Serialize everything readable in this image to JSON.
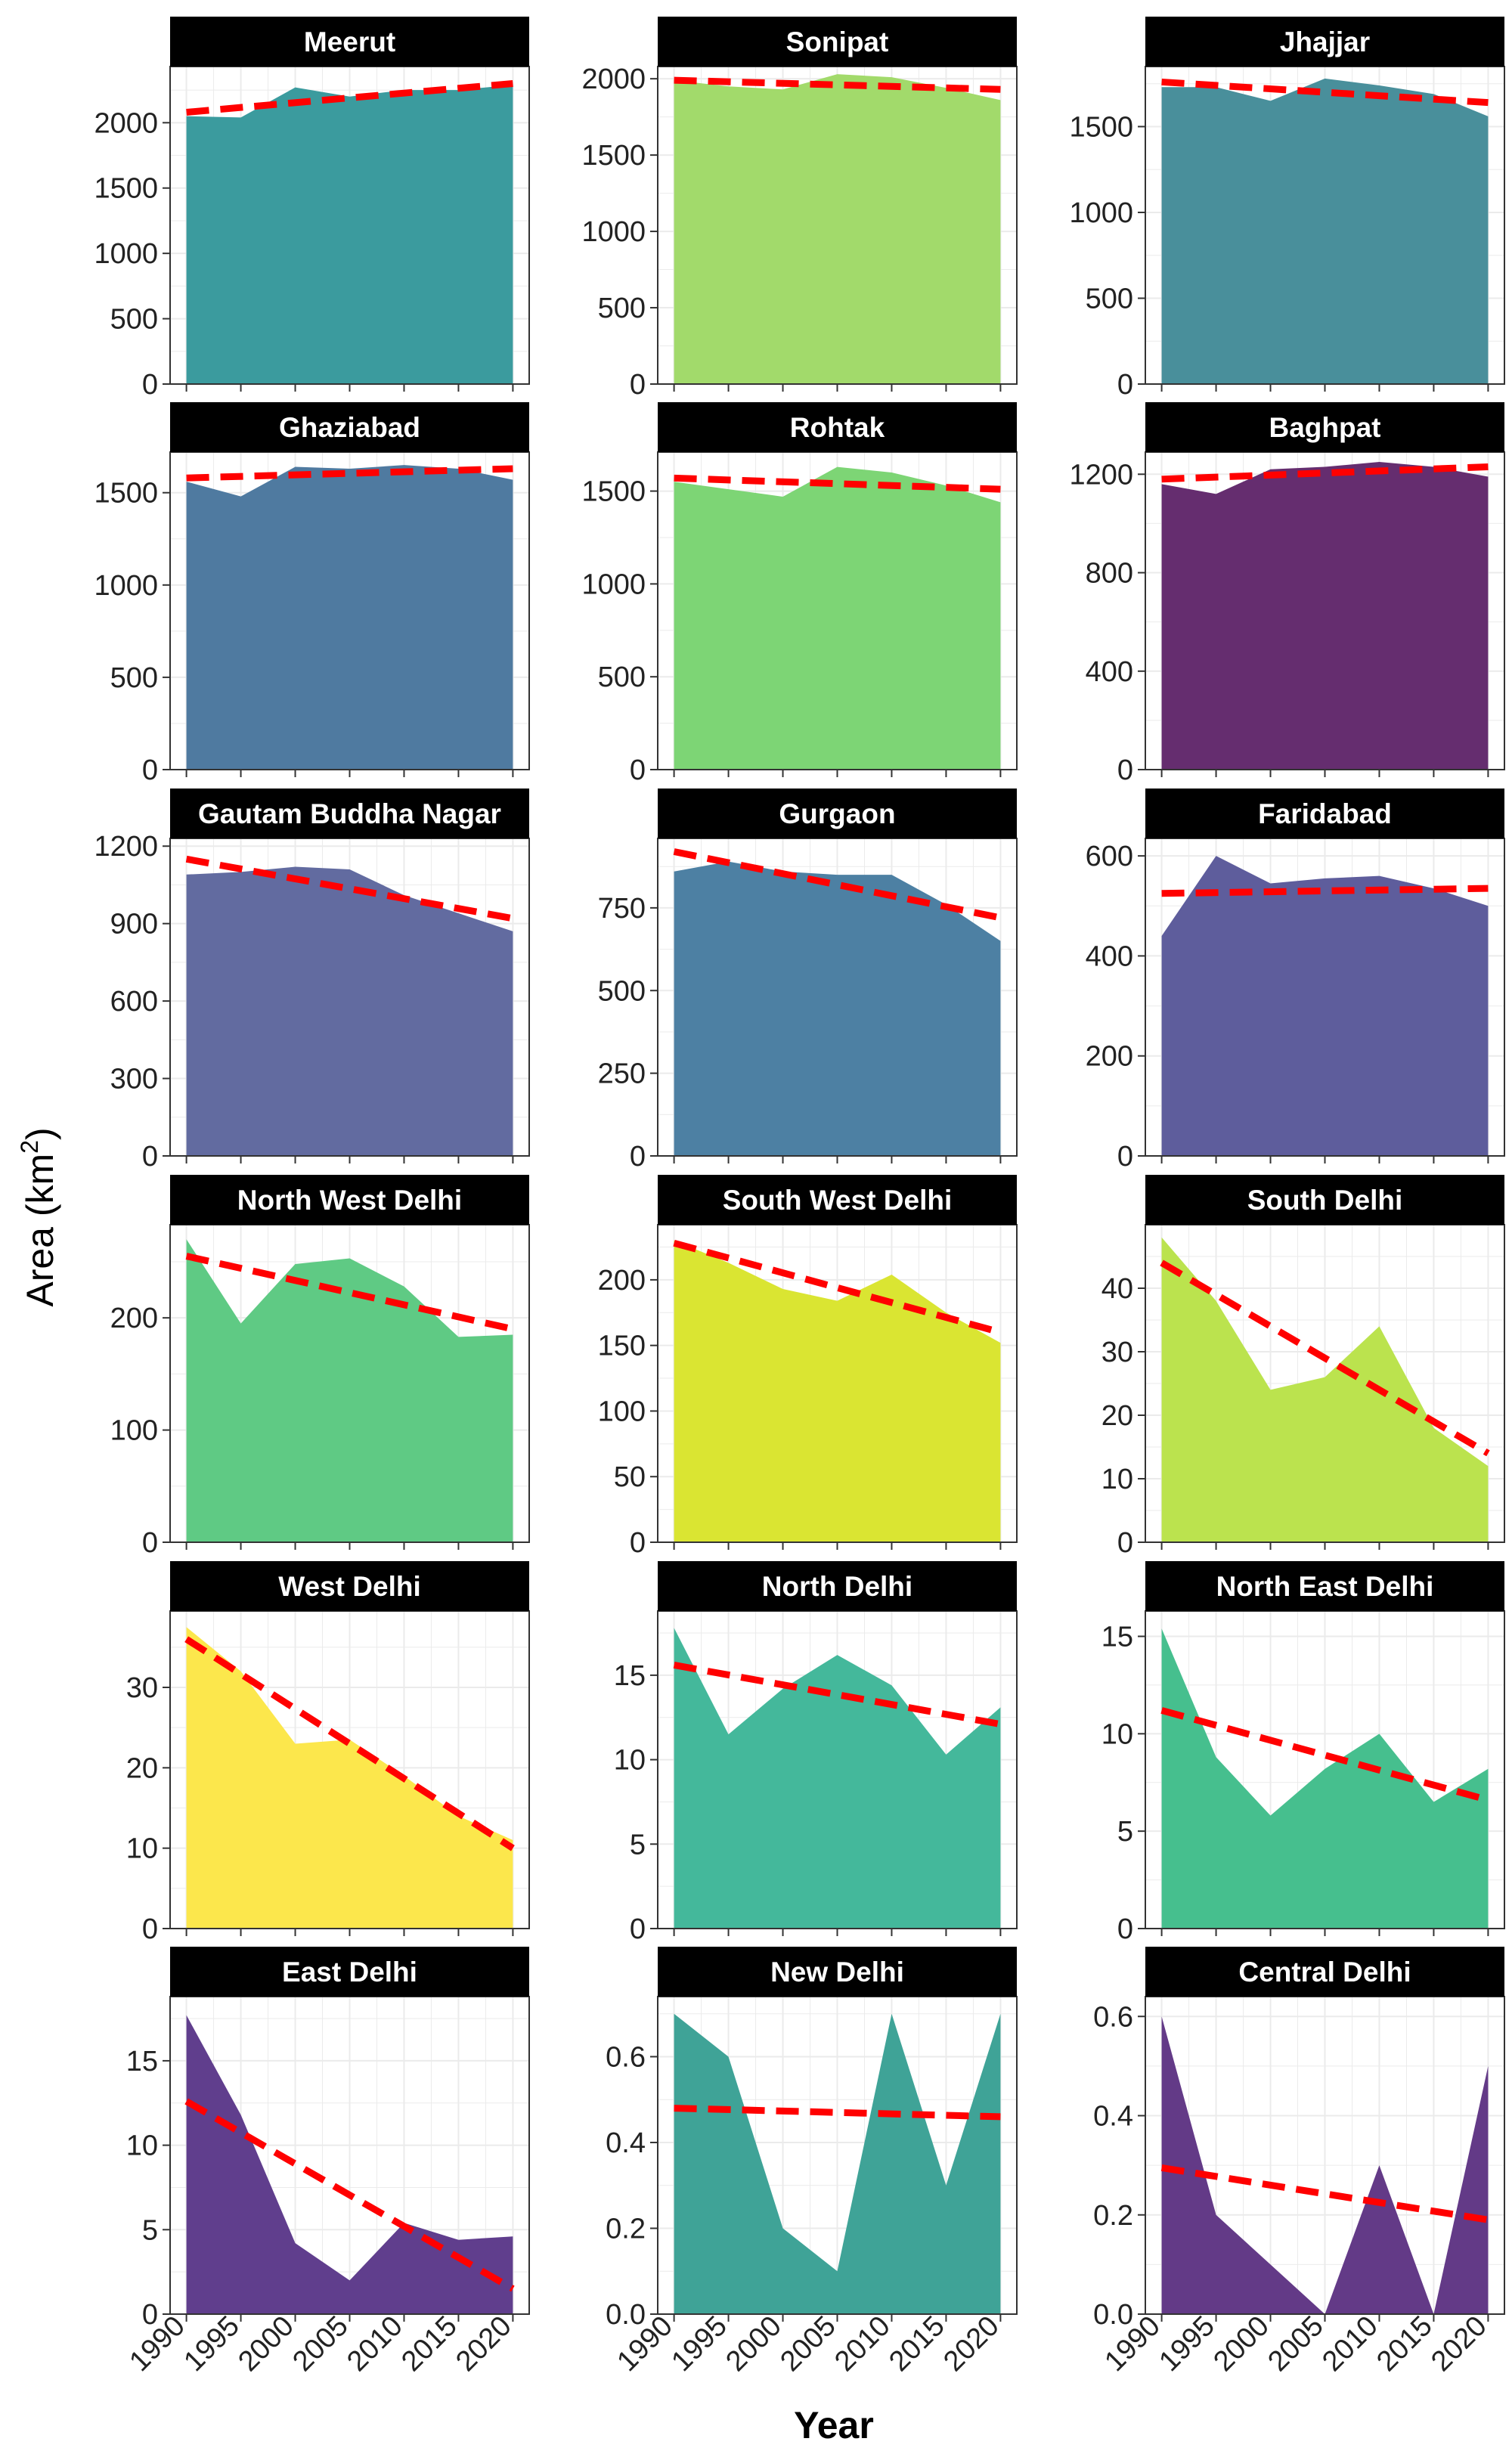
{
  "figure": {
    "ylabel": "Area (km",
    "ylabel_sup": "2",
    "ylabel_close": ")",
    "xlabel": "Year"
  },
  "colors": {
    "trend": "#ff0000",
    "strip": "#000000",
    "strip_text": "#ffffff",
    "grid": "#ebebeb",
    "border": "#333333"
  },
  "chart_data": [
    {
      "type": "area",
      "title": "Meerut",
      "color": "#3b9b9e",
      "x": [
        1990,
        1995,
        2000,
        2005,
        2010,
        2015,
        2020
      ],
      "values": [
        2050,
        2040,
        2270,
        2200,
        2250,
        2250,
        2290
      ],
      "trend": [
        2080,
        2300
      ],
      "ylim": [
        0,
        2430
      ],
      "yticks": [
        0,
        500,
        1000,
        1500,
        2000
      ]
    },
    {
      "type": "area",
      "title": "Sonipat",
      "color": "#a2da6b",
      "x": [
        1990,
        1995,
        2000,
        2005,
        2010,
        2015,
        2020
      ],
      "values": [
        1990,
        1950,
        1930,
        2030,
        2010,
        1940,
        1860
      ],
      "trend": [
        1990,
        1930
      ],
      "ylim": [
        0,
        2080
      ],
      "yticks": [
        0,
        500,
        1000,
        1500,
        2000
      ]
    },
    {
      "type": "area",
      "title": "Jhajjar",
      "color": "#498f9b",
      "x": [
        1990,
        1995,
        2000,
        2005,
        2010,
        2015,
        2020
      ],
      "values": [
        1730,
        1730,
        1650,
        1780,
        1740,
        1690,
        1560
      ],
      "trend": [
        1760,
        1640
      ],
      "ylim": [
        0,
        1850
      ],
      "yticks": [
        0,
        500,
        1000,
        1500
      ]
    },
    {
      "type": "area",
      "title": "Ghaziabad",
      "color": "#4f7aa0",
      "x": [
        1990,
        1995,
        2000,
        2005,
        2010,
        2015,
        2020
      ],
      "values": [
        1560,
        1480,
        1640,
        1630,
        1650,
        1630,
        1570
      ],
      "trend": [
        1580,
        1630
      ],
      "ylim": [
        0,
        1720
      ],
      "yticks": [
        0,
        500,
        1000,
        1500
      ]
    },
    {
      "type": "area",
      "title": "Rohtak",
      "color": "#7dd575",
      "x": [
        1990,
        1995,
        2000,
        2005,
        2010,
        2015,
        2020
      ],
      "values": [
        1550,
        1510,
        1470,
        1630,
        1600,
        1530,
        1440
      ],
      "trend": [
        1570,
        1510
      ],
      "ylim": [
        0,
        1710
      ],
      "yticks": [
        0,
        500,
        1000,
        1500
      ]
    },
    {
      "type": "area",
      "title": "Baghpat",
      "color": "#652d6f",
      "x": [
        1990,
        1995,
        2000,
        2005,
        2010,
        2015,
        2020
      ],
      "values": [
        1160,
        1120,
        1220,
        1230,
        1250,
        1230,
        1190
      ],
      "trend": [
        1180,
        1230
      ],
      "ylim": [
        0,
        1290
      ],
      "yticks": [
        0,
        400,
        800,
        1200
      ]
    },
    {
      "type": "area",
      "title": "Gautam Buddha Nagar",
      "color": "#626ba0",
      "x": [
        1990,
        1995,
        2000,
        2005,
        2010,
        2015,
        2020
      ],
      "values": [
        1090,
        1100,
        1120,
        1110,
        1010,
        940,
        870
      ],
      "trend": [
        1150,
        920
      ],
      "ylim": [
        0,
        1230
      ],
      "yticks": [
        0,
        300,
        600,
        900,
        1200
      ]
    },
    {
      "type": "area",
      "title": "Gurgaon",
      "color": "#4d80a3",
      "x": [
        1990,
        1995,
        2000,
        2005,
        2010,
        2015,
        2020
      ],
      "values": [
        860,
        890,
        860,
        850,
        850,
        760,
        650
      ],
      "trend": [
        920,
        720
      ],
      "ylim": [
        0,
        960
      ],
      "yticks": [
        0,
        250,
        500,
        750
      ]
    },
    {
      "type": "area",
      "title": "Faridabad",
      "color": "#5e5d9c",
      "x": [
        1990,
        1995,
        2000,
        2005,
        2010,
        2015,
        2020
      ],
      "values": [
        440,
        600,
        545,
        555,
        560,
        535,
        500
      ],
      "trend": [
        525,
        535
      ],
      "ylim": [
        0,
        635
      ],
      "yticks": [
        0,
        200,
        400,
        600
      ]
    },
    {
      "type": "area",
      "title": "North West Delhi",
      "color": "#5fca84",
      "x": [
        1990,
        1995,
        2000,
        2005,
        2010,
        2015,
        2020
      ],
      "values": [
        270,
        195,
        248,
        253,
        228,
        183,
        185
      ],
      "trend": [
        255,
        190
      ],
      "ylim": [
        0,
        283
      ],
      "yticks": [
        0,
        100,
        200
      ]
    },
    {
      "type": "area",
      "title": "South West Delhi",
      "color": "#dae532",
      "x": [
        1990,
        1995,
        2000,
        2005,
        2010,
        2015,
        2020
      ],
      "values": [
        230,
        213,
        193,
        184,
        204,
        175,
        152
      ],
      "trend": [
        228,
        160
      ],
      "ylim": [
        0,
        242
      ],
      "yticks": [
        0,
        50,
        100,
        150,
        200
      ]
    },
    {
      "type": "area",
      "title": "South Delhi",
      "color": "#bbe34e",
      "x": [
        1990,
        1995,
        2000,
        2005,
        2010,
        2015,
        2020
      ],
      "values": [
        48,
        38,
        24,
        26,
        34,
        18,
        12
      ],
      "trend": [
        44,
        14
      ],
      "ylim": [
        0,
        50
      ],
      "yticks": [
        0,
        10,
        20,
        30,
        40
      ]
    },
    {
      "type": "area",
      "title": "West Delhi",
      "color": "#fce74c",
      "x": [
        1990,
        1995,
        2000,
        2005,
        2010,
        2015,
        2020
      ],
      "values": [
        37.5,
        32,
        23,
        23.5,
        19,
        14,
        11
      ],
      "trend": [
        36,
        10
      ],
      "ylim": [
        0,
        39.5
      ],
      "yticks": [
        0,
        10,
        20,
        30
      ]
    },
    {
      "type": "area",
      "title": "North Delhi",
      "color": "#44b89b",
      "x": [
        1990,
        1995,
        2000,
        2005,
        2010,
        2015,
        2020
      ],
      "values": [
        17.8,
        11.5,
        14.2,
        16.2,
        14.4,
        10.3,
        13.1
      ],
      "trend": [
        15.6,
        12.1
      ],
      "ylim": [
        0,
        18.8
      ],
      "yticks": [
        0,
        5,
        10,
        15
      ]
    },
    {
      "type": "area",
      "title": "North East Delhi",
      "color": "#46bf8e",
      "x": [
        1990,
        1995,
        2000,
        2005,
        2010,
        2015,
        2020
      ],
      "values": [
        15.4,
        8.8,
        5.8,
        8.2,
        10.0,
        6.5,
        8.2
      ],
      "trend": [
        11.2,
        6.6
      ],
      "ylim": [
        0,
        16.3
      ],
      "yticks": [
        0,
        5,
        10,
        15
      ]
    },
    {
      "type": "area",
      "title": "East Delhi",
      "color": "#603e8d",
      "x": [
        1990,
        1995,
        2000,
        2005,
        2010,
        2015,
        2020
      ],
      "values": [
        17.7,
        11.8,
        4.2,
        2.0,
        5.4,
        4.4,
        4.6
      ],
      "trend": [
        12.6,
        1.5
      ],
      "ylim": [
        0,
        18.8
      ],
      "yticks": [
        0,
        5,
        10,
        15
      ]
    },
    {
      "type": "area",
      "title": "New Delhi",
      "color": "#3fa397",
      "x": [
        1990,
        1995,
        2000,
        2005,
        2010,
        2015,
        2020
      ],
      "values": [
        0.7,
        0.6,
        0.2,
        0.1,
        0.7,
        0.3,
        0.7
      ],
      "trend": [
        0.48,
        0.46
      ],
      "ylim": [
        0,
        0.74
      ],
      "yticks": [
        0,
        0.2,
        0.4,
        0.6
      ],
      "decimals": 1
    },
    {
      "type": "area",
      "title": "Central Delhi",
      "color": "#633a87",
      "x": [
        1990,
        1995,
        2000,
        2005,
        2010,
        2015,
        2020
      ],
      "values": [
        0.6,
        0.2,
        0.1,
        0.0,
        0.3,
        0.0,
        0.5
      ],
      "trend": [
        0.295,
        0.19
      ],
      "ylim": [
        0,
        0.64
      ],
      "yticks": [
        0,
        0.2,
        0.4,
        0.6
      ],
      "decimals": 1
    }
  ]
}
